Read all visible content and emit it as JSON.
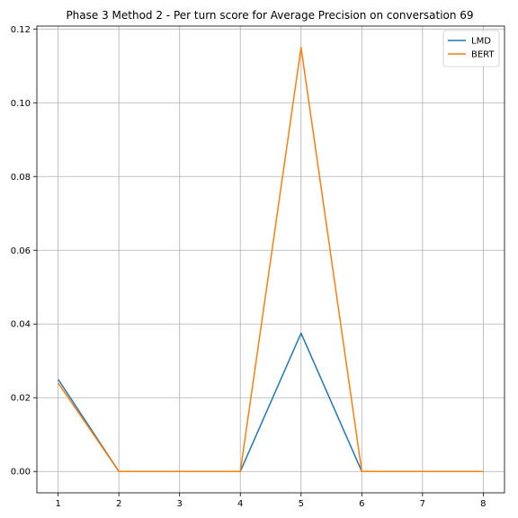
{
  "chart_data": {
    "type": "line",
    "title": "Phase 3 Method 2 - Per turn score for Average Precision on conversation 69",
    "xlabel": "",
    "ylabel": "",
    "x": [
      1,
      2,
      3,
      4,
      5,
      6,
      7,
      8
    ],
    "xticks": [
      1,
      2,
      3,
      4,
      5,
      6,
      7,
      8
    ],
    "xtick_labels": [
      "1",
      "2",
      "3",
      "4",
      "5",
      "6",
      "7",
      "8"
    ],
    "yticks": [
      0.0,
      0.02,
      0.04,
      0.06,
      0.08,
      0.1,
      0.12
    ],
    "ytick_labels": [
      "0.00",
      "0.02",
      "0.04",
      "0.06",
      "0.08",
      "0.10",
      "0.12"
    ],
    "xlim": [
      0.65,
      8.35
    ],
    "ylim": [
      -0.0058,
      0.1208
    ],
    "grid": true,
    "legend_position": "top-right",
    "series": [
      {
        "name": "LMD",
        "color": "#1f77b4",
        "values": [
          0.025,
          0.0,
          0.0,
          0.0,
          0.0375,
          0.0,
          0.0,
          0.0
        ]
      },
      {
        "name": "BERT",
        "color": "#ff7f0e",
        "values": [
          0.024,
          0.0,
          0.0,
          0.0,
          0.115,
          0.0,
          0.0,
          0.0
        ]
      }
    ]
  }
}
